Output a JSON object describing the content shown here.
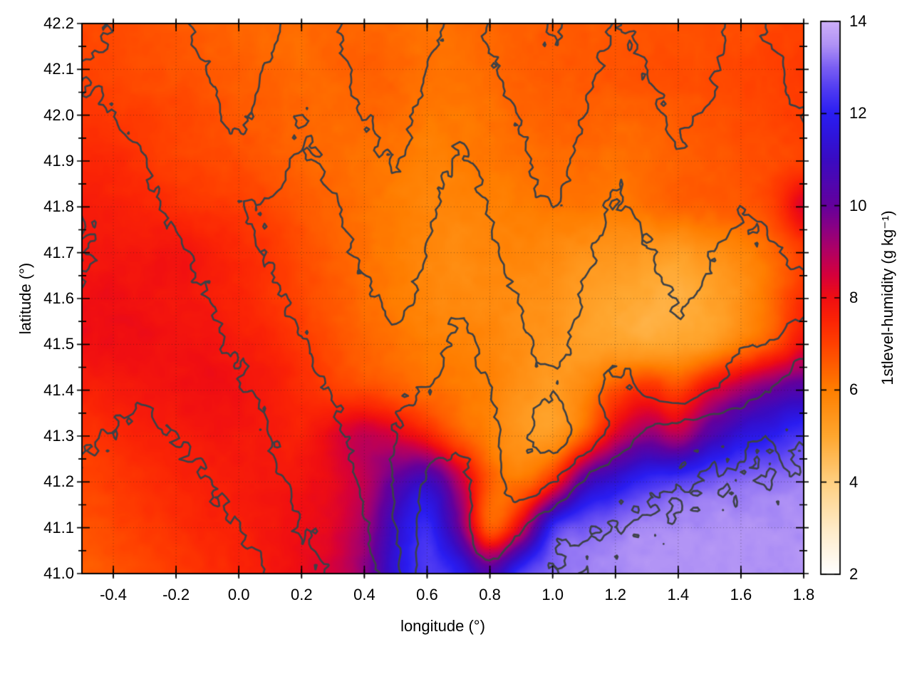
{
  "chart_data": {
    "type": "heatmap",
    "title": "",
    "xlabel": "longitude (°)",
    "ylabel": "latitude (°)",
    "colorbar_label": "1stlevel-humidity (g kg⁻¹)",
    "xlim": [
      -0.5,
      1.8
    ],
    "ylim": [
      41.0,
      42.2
    ],
    "x_major_ticks": [
      -0.4,
      -0.2,
      0.0,
      0.2,
      0.4,
      0.6,
      0.8,
      1.0,
      1.2,
      1.4,
      1.6,
      1.8
    ],
    "x_minor_step": 0.1,
    "y_major_ticks": [
      41.0,
      41.1,
      41.2,
      41.3,
      41.4,
      41.5,
      41.6,
      41.7,
      41.8,
      41.9,
      42.0,
      42.1,
      42.2
    ],
    "y_minor_step": 0.05,
    "grid": true,
    "colorbar": {
      "min": 2,
      "max": 14,
      "ticks": [
        2,
        4,
        6,
        8,
        10,
        12,
        14
      ]
    },
    "palette": [
      [
        2,
        "#ffffff"
      ],
      [
        3,
        "#ffeac6"
      ],
      [
        4,
        "#ffcf80"
      ],
      [
        5,
        "#ffa62e"
      ],
      [
        6,
        "#ff7e00"
      ],
      [
        6.5,
        "#ff5f00"
      ],
      [
        7,
        "#ff4000"
      ],
      [
        7.5,
        "#fb2405"
      ],
      [
        8,
        "#f00e12"
      ],
      [
        8.5,
        "#d5003c"
      ],
      [
        9,
        "#b20062"
      ],
      [
        9.5,
        "#8c0082"
      ],
      [
        10,
        "#64009c"
      ],
      [
        10.5,
        "#4f06af"
      ],
      [
        11,
        "#3a0bc2"
      ],
      [
        11.5,
        "#2f14da"
      ],
      [
        12,
        "#2a1df1"
      ],
      [
        12.5,
        "#4d39f2"
      ],
      [
        13,
        "#7a5ef3"
      ],
      [
        13.5,
        "#b092f5"
      ],
      [
        14,
        "#cdaff8"
      ]
    ],
    "humidity_lon": [
      -0.5,
      -0.4,
      -0.3,
      -0.2,
      -0.1,
      0.0,
      0.1,
      0.2,
      0.3,
      0.4,
      0.5,
      0.6,
      0.7,
      0.8,
      0.9,
      1.0,
      1.1,
      1.2,
      1.3,
      1.4,
      1.5,
      1.6,
      1.7,
      1.8
    ],
    "humidity_lat": [
      42.2,
      42.1,
      42.0,
      41.9,
      41.8,
      41.7,
      41.6,
      41.5,
      41.4,
      41.3,
      41.2,
      41.1,
      41.0
    ],
    "humidity_grid": [
      [
        6.9,
        6.8,
        6.7,
        6.6,
        6.5,
        6.4,
        6.3,
        6.3,
        6.4,
        6.4,
        6.3,
        6.2,
        6.3,
        6.4,
        6.5,
        6.6,
        6.6,
        6.6,
        6.7,
        6.7,
        6.8,
        6.8,
        6.9,
        7.0
      ],
      [
        7.0,
        6.9,
        6.8,
        6.7,
        6.6,
        6.5,
        6.4,
        6.3,
        6.4,
        6.5,
        6.4,
        6.2,
        6.2,
        6.3,
        6.5,
        6.6,
        6.6,
        6.7,
        6.7,
        6.8,
        6.8,
        6.9,
        7.0,
        7.1
      ],
      [
        7.2,
        7.1,
        7.0,
        6.9,
        6.8,
        6.6,
        6.5,
        6.4,
        6.3,
        6.4,
        6.3,
        6.1,
        6.1,
        6.2,
        6.4,
        6.5,
        6.5,
        6.4,
        6.5,
        6.6,
        6.7,
        6.8,
        6.9,
        7.1
      ],
      [
        7.5,
        7.4,
        7.2,
        7.0,
        6.9,
        6.8,
        6.6,
        6.4,
        6.3,
        6.2,
        6.1,
        5.9,
        6.0,
        6.1,
        6.2,
        6.3,
        6.3,
        6.2,
        6.3,
        6.5,
        6.6,
        6.7,
        6.8,
        7.0
      ],
      [
        7.7,
        7.6,
        7.5,
        7.3,
        7.2,
        7.1,
        6.9,
        6.6,
        6.4,
        6.2,
        6.0,
        5.8,
        5.8,
        5.9,
        6.0,
        6.1,
        6.1,
        6.0,
        6.2,
        6.4,
        6.5,
        6.6,
        7.0,
        8.3
      ],
      [
        7.8,
        7.8,
        7.8,
        7.9,
        7.7,
        7.4,
        7.2,
        6.8,
        6.5,
        6.2,
        6.0,
        5.8,
        5.7,
        5.8,
        5.8,
        5.7,
        5.5,
        5.4,
        5.3,
        5.2,
        5.5,
        5.8,
        6.3,
        7.0
      ],
      [
        8.0,
        8.0,
        7.9,
        7.8,
        7.7,
        7.5,
        7.2,
        6.9,
        6.6,
        6.3,
        6.0,
        5.8,
        5.7,
        5.7,
        5.6,
        5.5,
        5.2,
        5.0,
        4.9,
        4.8,
        5.1,
        5.5,
        6.3,
        7.3
      ],
      [
        8.0,
        8.0,
        8.0,
        7.9,
        7.9,
        7.7,
        7.5,
        7.2,
        6.8,
        6.4,
        6.2,
        6.0,
        5.9,
        5.8,
        5.6,
        5.4,
        5.2,
        5.1,
        5.0,
        5.1,
        5.3,
        6.0,
        6.8,
        8.0
      ],
      [
        7.6,
        7.7,
        7.8,
        7.9,
        8.0,
        7.9,
        7.7,
        7.4,
        7.1,
        6.9,
        6.6,
        6.3,
        6.1,
        5.9,
        5.5,
        5.3,
        5.8,
        6.8,
        7.4,
        7.0,
        8.2,
        9.2,
        10.0,
        10.5
      ],
      [
        7.2,
        7.4,
        7.6,
        7.7,
        7.8,
        7.8,
        7.7,
        7.6,
        8.2,
        8.8,
        8.4,
        7.6,
        6.6,
        5.9,
        5.4,
        5.3,
        6.5,
        8.5,
        9.5,
        9.0,
        10.5,
        11.5,
        12.0,
        12.5
      ],
      [
        6.9,
        7.1,
        7.3,
        7.5,
        7.6,
        7.7,
        7.8,
        7.9,
        8.2,
        8.8,
        10.2,
        11.0,
        9.0,
        6.6,
        6.2,
        7.5,
        10.5,
        11.5,
        12.3,
        12.6,
        12.9,
        13.1,
        13.2,
        13.3
      ],
      [
        6.7,
        6.9,
        7.1,
        7.3,
        7.5,
        7.6,
        7.8,
        8.0,
        8.3,
        9.2,
        11.2,
        12.2,
        10.0,
        6.6,
        8.5,
        12.2,
        12.9,
        13.2,
        13.4,
        13.4,
        13.5,
        13.5,
        13.5,
        13.5
      ],
      [
        6.5,
        6.7,
        6.9,
        7.1,
        7.3,
        7.5,
        7.8,
        8.1,
        8.5,
        9.5,
        11.5,
        12.5,
        12.0,
        10.5,
        12.5,
        13.1,
        13.3,
        13.4,
        13.5,
        13.5,
        13.5,
        13.5,
        13.5,
        13.5
      ]
    ],
    "contours": {
      "field": "terrain_elevation_m",
      "levels": [
        0,
        150,
        300,
        450,
        600,
        750
      ],
      "color": "#3c4147",
      "linewidth": 2.6
    },
    "elevation_grid": [
      [
        650,
        600,
        520,
        560,
        640,
        700,
        620,
        540,
        580,
        660,
        720,
        650,
        560,
        620,
        700,
        760,
        680,
        600,
        640,
        700,
        650,
        580,
        620,
        680
      ],
      [
        600,
        560,
        500,
        540,
        600,
        660,
        580,
        500,
        560,
        640,
        680,
        600,
        520,
        580,
        660,
        720,
        640,
        560,
        600,
        660,
        620,
        560,
        580,
        640
      ],
      [
        640,
        600,
        540,
        480,
        560,
        620,
        540,
        460,
        520,
        600,
        640,
        560,
        480,
        540,
        620,
        680,
        600,
        520,
        560,
        620,
        580,
        540,
        560,
        600
      ],
      [
        700,
        660,
        600,
        520,
        480,
        560,
        500,
        440,
        480,
        560,
        600,
        520,
        440,
        500,
        580,
        640,
        560,
        480,
        520,
        580,
        540,
        500,
        520,
        560
      ],
      [
        740,
        700,
        640,
        560,
        500,
        460,
        440,
        400,
        440,
        520,
        560,
        480,
        400,
        460,
        540,
        600,
        520,
        440,
        480,
        540,
        500,
        460,
        480,
        520
      ],
      [
        760,
        720,
        680,
        620,
        560,
        500,
        440,
        380,
        400,
        480,
        520,
        440,
        360,
        420,
        500,
        560,
        480,
        400,
        440,
        500,
        460,
        420,
        440,
        480
      ],
      [
        740,
        700,
        660,
        640,
        600,
        540,
        480,
        420,
        360,
        420,
        480,
        400,
        320,
        380,
        460,
        520,
        440,
        360,
        400,
        460,
        420,
        380,
        400,
        360
      ],
      [
        700,
        680,
        660,
        640,
        620,
        580,
        520,
        460,
        400,
        360,
        420,
        360,
        280,
        340,
        420,
        480,
        400,
        320,
        360,
        420,
        380,
        300,
        280,
        200
      ],
      [
        660,
        640,
        620,
        640,
        660,
        620,
        560,
        500,
        440,
        380,
        320,
        300,
        240,
        300,
        380,
        440,
        360,
        280,
        320,
        380,
        300,
        220,
        140,
        60
      ],
      [
        620,
        600,
        580,
        600,
        640,
        660,
        600,
        540,
        480,
        400,
        300,
        220,
        180,
        260,
        420,
        500,
        380,
        240,
        120,
        60,
        40,
        20,
        10,
        5
      ],
      [
        580,
        560,
        540,
        560,
        600,
        640,
        620,
        580,
        520,
        420,
        280,
        140,
        120,
        220,
        380,
        300,
        140,
        50,
        25,
        10,
        0,
        -5,
        -10,
        -15
      ],
      [
        540,
        520,
        500,
        520,
        560,
        600,
        640,
        600,
        560,
        460,
        300,
        100,
        80,
        260,
        160,
        50,
        15,
        0,
        -10,
        -15,
        -20,
        -22,
        -25,
        -28
      ],
      [
        500,
        480,
        460,
        480,
        520,
        560,
        600,
        620,
        580,
        500,
        340,
        80,
        60,
        120,
        40,
        5,
        -10,
        -18,
        -22,
        -26,
        -28,
        -30,
        -32,
        -35
      ]
    ]
  }
}
